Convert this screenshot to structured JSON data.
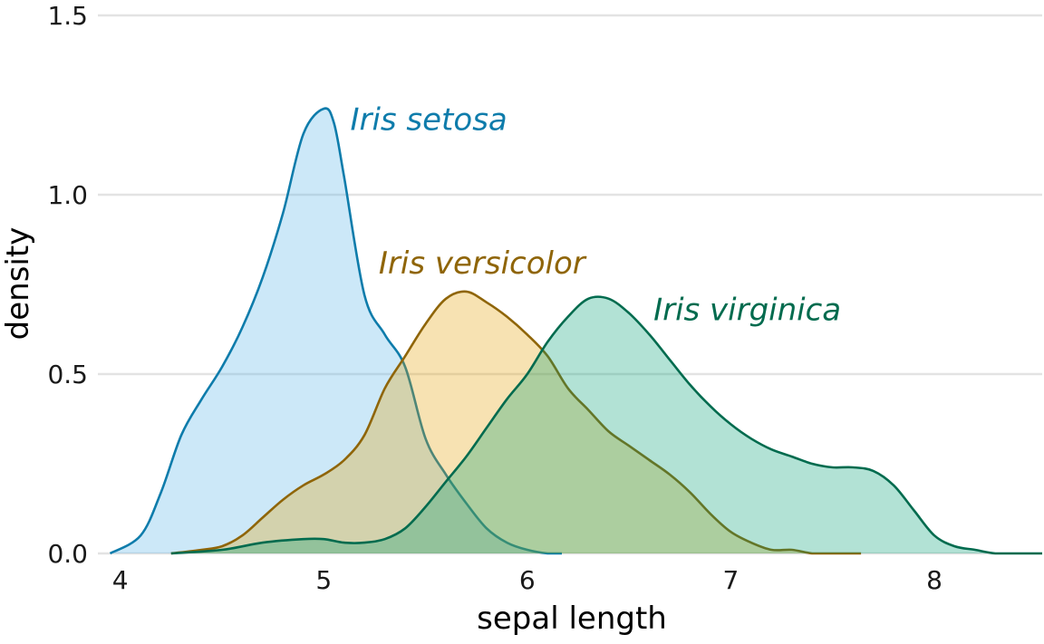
{
  "chart_data": {
    "type": "area",
    "xlabel": "sepal length",
    "ylabel": "density",
    "xlim": [
      3.89,
      8.53
    ],
    "ylim": [
      0,
      1.5
    ],
    "xticks": [
      "4",
      "5",
      "6",
      "7",
      "8"
    ],
    "yticks": [
      "0.0",
      "0.5",
      "1.0",
      "1.5"
    ],
    "grid": "horizontal",
    "legend": "direct labels",
    "series": [
      {
        "name": "Iris setosa",
        "color": "#0e7cab",
        "fill": "#56b4e9",
        "fill_opacity": 0.3,
        "x": [
          3.95,
          4.1,
          4.2,
          4.3,
          4.4,
          4.5,
          4.6,
          4.7,
          4.8,
          4.9,
          5.0,
          5.05,
          5.1,
          5.2,
          5.3,
          5.4,
          5.5,
          5.6,
          5.7,
          5.8,
          5.9,
          6.0,
          6.1,
          6.17
        ],
        "y": [
          0.0,
          0.05,
          0.17,
          0.33,
          0.43,
          0.52,
          0.63,
          0.77,
          0.95,
          1.17,
          1.24,
          1.2,
          1.05,
          0.72,
          0.61,
          0.52,
          0.32,
          0.22,
          0.14,
          0.07,
          0.03,
          0.01,
          0.0,
          0.0
        ]
      },
      {
        "name": "Iris versicolor",
        "color": "#8f6508",
        "fill": "#e69f00",
        "fill_opacity": 0.3,
        "x": [
          4.25,
          4.4,
          4.5,
          4.6,
          4.7,
          4.8,
          4.9,
          5.0,
          5.1,
          5.2,
          5.3,
          5.4,
          5.5,
          5.6,
          5.7,
          5.8,
          5.9,
          6.0,
          6.1,
          6.2,
          6.3,
          6.4,
          6.5,
          6.6,
          6.7,
          6.8,
          6.9,
          7.0,
          7.1,
          7.2,
          7.3,
          7.4,
          7.5,
          7.64
        ],
        "y": [
          0.0,
          0.01,
          0.02,
          0.05,
          0.1,
          0.15,
          0.19,
          0.22,
          0.26,
          0.33,
          0.46,
          0.55,
          0.64,
          0.71,
          0.73,
          0.7,
          0.66,
          0.61,
          0.55,
          0.46,
          0.4,
          0.34,
          0.3,
          0.26,
          0.22,
          0.17,
          0.11,
          0.06,
          0.03,
          0.01,
          0.01,
          0.0,
          0.0,
          0.0
        ]
      },
      {
        "name": "Iris virginica",
        "color": "#006b4e",
        "fill": "#009e73",
        "fill_opacity": 0.3,
        "x": [
          4.25,
          4.5,
          4.7,
          4.9,
          5.0,
          5.1,
          5.2,
          5.3,
          5.4,
          5.5,
          5.6,
          5.7,
          5.8,
          5.9,
          6.0,
          6.1,
          6.2,
          6.3,
          6.4,
          6.5,
          6.6,
          6.7,
          6.8,
          6.9,
          7.0,
          7.1,
          7.2,
          7.3,
          7.4,
          7.5,
          7.6,
          7.7,
          7.8,
          7.9,
          8.0,
          8.1,
          8.2,
          8.3,
          8.4,
          8.53
        ],
        "y": [
          0.0,
          0.01,
          0.03,
          0.04,
          0.04,
          0.03,
          0.03,
          0.04,
          0.07,
          0.13,
          0.2,
          0.27,
          0.35,
          0.43,
          0.5,
          0.59,
          0.66,
          0.71,
          0.71,
          0.67,
          0.61,
          0.54,
          0.47,
          0.41,
          0.36,
          0.32,
          0.29,
          0.27,
          0.25,
          0.24,
          0.24,
          0.23,
          0.19,
          0.12,
          0.05,
          0.02,
          0.01,
          0.0,
          0.0,
          0.0
        ]
      }
    ],
    "annotations": [
      {
        "text": "Iris setosa",
        "series": 0,
        "x": 5.13,
        "y": 1.18
      },
      {
        "text": "Iris versicolor",
        "series": 1,
        "x": 5.27,
        "y": 0.78
      },
      {
        "text": "Iris virginica",
        "series": 2,
        "x": 6.62,
        "y": 0.65
      }
    ]
  }
}
